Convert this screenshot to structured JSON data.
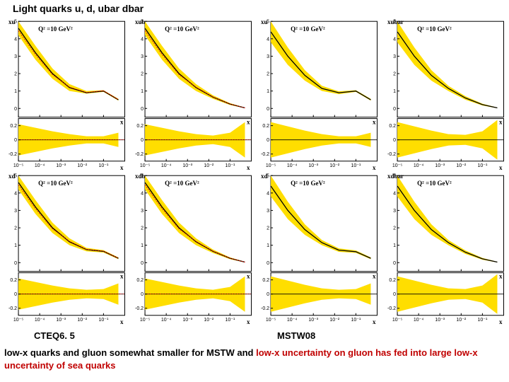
{
  "title": "Light quarks u, d, ubar dbar",
  "label_cteq": "CTEQ6. 5",
  "label_mstw": "MSTW08",
  "caption_parts": {
    "p1": " low-x quarks and gluon somewhat smaller for MSTW and ",
    "p2": "low-x uncertainty on gluon has fed into large low-x uncertainty of sea quarks"
  },
  "common": {
    "q2_label": "Q² =10 GeV²",
    "band_color": "#ffde00",
    "curve_color": "#000000",
    "red_color": "#ff0000",
    "axis_color": "#000000",
    "bg_color": "#ffffff",
    "x_ticks": [
      "10⁻⁵",
      "10⁻⁴",
      "10⁻³",
      "10⁻²",
      "10⁻¹"
    ],
    "x_label": "x",
    "main_ylim": [
      -0.5,
      5
    ],
    "main_yticks": [
      0,
      1,
      2,
      3,
      4,
      5
    ],
    "ratio_ylim": [
      -0.3,
      0.3
    ],
    "ratio_yticks": [
      -0.2,
      0,
      0.2
    ]
  },
  "panels": [
    {
      "ylabel": "xu",
      "central": [
        4.6,
        3.2,
        2.0,
        1.2,
        0.9,
        1.0,
        0.5
      ],
      "band_hi": [
        5.0,
        3.6,
        2.3,
        1.4,
        1.0,
        1.05,
        0.55
      ],
      "band_lo": [
        4.2,
        2.8,
        1.7,
        1.0,
        0.85,
        0.95,
        0.45
      ],
      "ratio_hi": [
        0.22,
        0.17,
        0.12,
        0.08,
        0.05,
        0.05,
        0.1
      ],
      "ratio_lo": [
        -0.22,
        -0.17,
        -0.12,
        -0.08,
        -0.05,
        -0.05,
        -0.1
      ],
      "has_red": true,
      "hump": true
    },
    {
      "ylabel": "xub",
      "central": [
        4.6,
        3.2,
        2.0,
        1.2,
        0.65,
        0.25,
        0.03
      ],
      "band_hi": [
        5.0,
        3.6,
        2.3,
        1.4,
        0.75,
        0.3,
        0.05
      ],
      "band_lo": [
        4.2,
        2.8,
        1.7,
        1.0,
        0.55,
        0.2,
        0.01
      ],
      "ratio_hi": [
        0.22,
        0.17,
        0.12,
        0.08,
        0.06,
        0.1,
        0.25
      ],
      "ratio_lo": [
        -0.22,
        -0.17,
        -0.12,
        -0.08,
        -0.06,
        -0.1,
        -0.25
      ],
      "has_red": true,
      "hump": false
    },
    {
      "ylabel": "xu",
      "central": [
        4.4,
        3.0,
        1.9,
        1.15,
        0.9,
        1.0,
        0.5
      ],
      "band_hi": [
        5.0,
        3.5,
        2.2,
        1.3,
        0.98,
        1.05,
        0.55
      ],
      "band_lo": [
        3.8,
        2.5,
        1.6,
        1.0,
        0.82,
        0.95,
        0.45
      ],
      "ratio_hi": [
        0.25,
        0.19,
        0.13,
        0.08,
        0.05,
        0.05,
        0.1
      ],
      "ratio_lo": [
        -0.25,
        -0.19,
        -0.13,
        -0.08,
        -0.05,
        -0.05,
        -0.1
      ],
      "has_red": false,
      "hump": true
    },
    {
      "ylabel": "xubar",
      "central": [
        4.4,
        3.0,
        1.9,
        1.15,
        0.6,
        0.22,
        0.03
      ],
      "band_hi": [
        5.0,
        3.5,
        2.2,
        1.3,
        0.7,
        0.27,
        0.05
      ],
      "band_lo": [
        3.8,
        2.5,
        1.6,
        1.0,
        0.5,
        0.17,
        0.01
      ],
      "ratio_hi": [
        0.25,
        0.19,
        0.13,
        0.08,
        0.07,
        0.12,
        0.28
      ],
      "ratio_lo": [
        -0.25,
        -0.19,
        -0.13,
        -0.08,
        -0.07,
        -0.12,
        -0.28
      ],
      "has_red": false,
      "hump": false
    },
    {
      "ylabel": "xd",
      "central": [
        4.6,
        3.2,
        2.0,
        1.2,
        0.75,
        0.65,
        0.25
      ],
      "band_hi": [
        5.0,
        3.6,
        2.3,
        1.4,
        0.85,
        0.72,
        0.3
      ],
      "band_lo": [
        4.2,
        2.8,
        1.7,
        1.0,
        0.65,
        0.58,
        0.2
      ],
      "ratio_hi": [
        0.22,
        0.17,
        0.12,
        0.08,
        0.06,
        0.07,
        0.15
      ],
      "ratio_lo": [
        -0.22,
        -0.17,
        -0.12,
        -0.08,
        -0.06,
        -0.07,
        -0.15
      ],
      "has_red": true,
      "hump": true
    },
    {
      "ylabel": "xdb",
      "central": [
        4.6,
        3.2,
        2.0,
        1.2,
        0.65,
        0.25,
        0.03
      ],
      "band_hi": [
        5.0,
        3.6,
        2.3,
        1.4,
        0.75,
        0.3,
        0.05
      ],
      "band_lo": [
        4.2,
        2.8,
        1.7,
        1.0,
        0.55,
        0.2,
        0.01
      ],
      "ratio_hi": [
        0.22,
        0.17,
        0.12,
        0.08,
        0.06,
        0.1,
        0.25
      ],
      "ratio_lo": [
        -0.22,
        -0.17,
        -0.12,
        -0.08,
        -0.06,
        -0.1,
        -0.25
      ],
      "has_red": true,
      "hump": false
    },
    {
      "ylabel": "xd",
      "central": [
        4.4,
        3.0,
        1.9,
        1.15,
        0.72,
        0.63,
        0.25
      ],
      "band_hi": [
        5.0,
        3.5,
        2.2,
        1.3,
        0.82,
        0.7,
        0.3
      ],
      "band_lo": [
        3.8,
        2.5,
        1.6,
        1.0,
        0.62,
        0.56,
        0.2
      ],
      "ratio_hi": [
        0.25,
        0.19,
        0.13,
        0.08,
        0.06,
        0.07,
        0.15
      ],
      "ratio_lo": [
        -0.25,
        -0.19,
        -0.13,
        -0.08,
        -0.06,
        -0.07,
        -0.15
      ],
      "has_red": false,
      "hump": true
    },
    {
      "ylabel": "xdbar",
      "central": [
        4.4,
        3.0,
        1.9,
        1.15,
        0.6,
        0.22,
        0.03
      ],
      "band_hi": [
        5.0,
        3.5,
        2.2,
        1.3,
        0.7,
        0.27,
        0.05
      ],
      "band_lo": [
        3.8,
        2.5,
        1.6,
        1.0,
        0.5,
        0.17,
        0.01
      ],
      "ratio_hi": [
        0.25,
        0.19,
        0.13,
        0.08,
        0.07,
        0.12,
        0.28
      ],
      "ratio_lo": [
        -0.25,
        -0.19,
        -0.13,
        -0.08,
        -0.07,
        -0.12,
        -0.28
      ],
      "has_red": false,
      "hump": false
    }
  ]
}
